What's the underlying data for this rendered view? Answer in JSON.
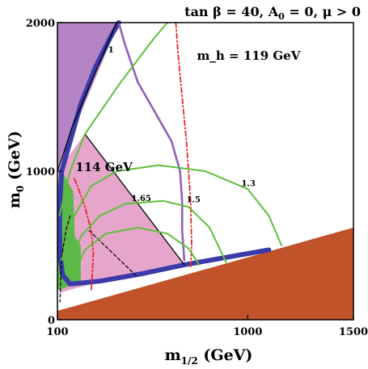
{
  "chart_data": {
    "type": "area",
    "title": "tan β = 40, A₀ = 0, μ > 0",
    "xlabel": "m1/2 (GeV)",
    "ylabel": "m0 (GeV)",
    "xlim": [
      100,
      1500
    ],
    "ylim": [
      0,
      2000
    ],
    "x_ticks": [
      100,
      1000,
      1500
    ],
    "y_ticks": [
      0,
      1000,
      2000
    ],
    "grid": false,
    "colors": {
      "excluded_stau_lsp": "#c0532a",
      "gminus2_favoured": "#e6a6cc",
      "no_ewsb": "#b584c4",
      "bsgamma_excluded": "#5ab84c",
      "wmap_relic": "#3a3aa8",
      "chargino_line": "#000000",
      "higgs_mass": "#e8252c",
      "gminus2_contours": "#5ebf3a",
      "wmap_funnel": "#9160b8"
    },
    "regions": [
      {
        "name": "stau LSP (excluded)",
        "color": "excluded_stau_lsp",
        "points": [
          [
            100,
            60
          ],
          [
            1500,
            620
          ],
          [
            1500,
            0
          ],
          [
            100,
            0
          ]
        ]
      },
      {
        "name": "g-2 favoured",
        "color": "gminus2_favoured",
        "points": [
          [
            100,
            1000
          ],
          [
            230,
            1250
          ],
          [
            700,
            370
          ],
          [
            400,
            290
          ],
          [
            180,
            210
          ],
          [
            110,
            180
          ]
        ]
      },
      {
        "name": "no EWSB",
        "color": "no_ewsb",
        "points": [
          [
            100,
            2000
          ],
          [
            390,
            2000
          ],
          [
            110,
            1050
          ],
          [
            100,
            1000
          ]
        ]
      },
      {
        "name": "b → s γ excluded",
        "color": "bsgamma_excluded",
        "points": [
          [
            100,
            920
          ],
          [
            130,
            980
          ],
          [
            175,
            860
          ],
          [
            182,
            560
          ],
          [
            210,
            500
          ],
          [
            210,
            230
          ],
          [
            160,
            230
          ],
          [
            110,
            200
          ],
          [
            100,
            210
          ]
        ]
      }
    ],
    "series": [
      {
        "name": "",
        "style": "wmap",
        "color": "wmap_relic",
        "points": [
          [
            390,
            2000
          ],
          [
            350,
            1900
          ],
          [
            280,
            1700
          ],
          [
            210,
            1450
          ],
          [
            180,
            1300
          ],
          [
            140,
            1100
          ],
          [
            120,
            1000
          ],
          [
            112,
            800
          ],
          [
            110,
            600
          ],
          [
            115,
            400
          ],
          [
            125,
            300
          ],
          [
            160,
            240
          ],
          [
            300,
            260
          ],
          [
            500,
            310
          ],
          [
            700,
            370
          ],
          [
            900,
            420
          ],
          [
            1100,
            470
          ]
        ]
      },
      {
        "name": "",
        "style": "wmap-funnel",
        "color": "wmap_funnel",
        "points": [
          [
            390,
            2000
          ],
          [
            420,
            1850
          ],
          [
            480,
            1600
          ],
          [
            560,
            1400
          ],
          [
            640,
            1200
          ],
          [
            680,
            1000
          ],
          [
            690,
            800
          ],
          [
            690,
            600
          ],
          [
            700,
            400
          ]
        ]
      },
      {
        "name": "",
        "style": "chargino",
        "color": "chargino_line",
        "points": [
          [
            100,
            1000
          ],
          [
            120,
            1080
          ],
          [
            170,
            1300
          ],
          [
            260,
            1600
          ],
          [
            380,
            2000
          ]
        ]
      },
      {
        "name": "",
        "style": "chargino",
        "color": "chargino_line",
        "points": [
          [
            230,
            1250
          ],
          [
            700,
            370
          ]
        ]
      },
      {
        "name": "",
        "style": "dashed",
        "color": "chargino_line",
        "points": [
          [
            160,
            700
          ],
          [
            140,
            600
          ],
          [
            120,
            420
          ],
          [
            114,
            200
          ],
          [
            112,
            120
          ]
        ]
      },
      {
        "name": "",
        "style": "dashed",
        "color": "chargino_line",
        "points": [
          [
            250,
            600
          ],
          [
            360,
            450
          ],
          [
            470,
            300
          ]
        ]
      },
      {
        "name": "",
        "style": "dashdot",
        "color": "higgs_mass",
        "points": [
          [
            660,
            2000
          ],
          [
            670,
            1800
          ],
          [
            690,
            1500
          ],
          [
            710,
            1200
          ],
          [
            720,
            1000
          ],
          [
            730,
            800
          ],
          [
            735,
            500
          ],
          [
            730,
            350
          ]
        ]
      },
      {
        "name": "",
        "style": "dashdot",
        "color": "higgs_mass",
        "points": [
          [
            180,
            950
          ],
          [
            200,
            880
          ],
          [
            230,
            760
          ],
          [
            260,
            600
          ],
          [
            270,
            450
          ],
          [
            265,
            300
          ],
          [
            260,
            200
          ]
        ]
      },
      {
        "name": "",
        "style": "gm2",
        "color": "gminus2_contours",
        "points": [
          [
            110,
            700
          ],
          [
            160,
            1000
          ],
          [
            230,
            1250
          ],
          [
            400,
            1600
          ],
          [
            560,
            1900
          ],
          [
            620,
            2000
          ]
        ]
      },
      {
        "name": "",
        "style": "gm2",
        "color": "gminus2_contours",
        "points": [
          [
            120,
            400
          ],
          [
            180,
            700
          ],
          [
            260,
            900
          ],
          [
            380,
            1000
          ],
          [
            580,
            1040
          ],
          [
            800,
            1000
          ],
          [
            1000,
            880
          ],
          [
            1100,
            700
          ],
          [
            1160,
            500
          ]
        ]
      },
      {
        "name": "",
        "style": "gm2",
        "color": "gminus2_contours",
        "points": [
          [
            150,
            300
          ],
          [
            210,
            560
          ],
          [
            300,
            700
          ],
          [
            420,
            780
          ],
          [
            600,
            800
          ],
          [
            720,
            760
          ],
          [
            820,
            620
          ],
          [
            880,
            440
          ],
          [
            900,
            380
          ]
        ]
      },
      {
        "name": "",
        "style": "gm2",
        "color": "gminus2_contours",
        "points": [
          [
            170,
            280
          ],
          [
            230,
            470
          ],
          [
            330,
            580
          ],
          [
            480,
            620
          ],
          [
            620,
            580
          ],
          [
            720,
            480
          ],
          [
            770,
            370
          ]
        ]
      }
    ],
    "annotations": [
      {
        "text": "m_h = 119 GeV",
        "x": 760,
        "y": 1750
      },
      {
        "text": "114 GeV",
        "x": 185,
        "y": 1000
      },
      {
        "text": "1",
        "x": 340,
        "y": 1800
      },
      {
        "text": "1.3",
        "x": 970,
        "y": 900
      },
      {
        "text": "1.5",
        "x": 710,
        "y": 790
      },
      {
        "text": "1.65",
        "x": 450,
        "y": 800
      }
    ]
  }
}
